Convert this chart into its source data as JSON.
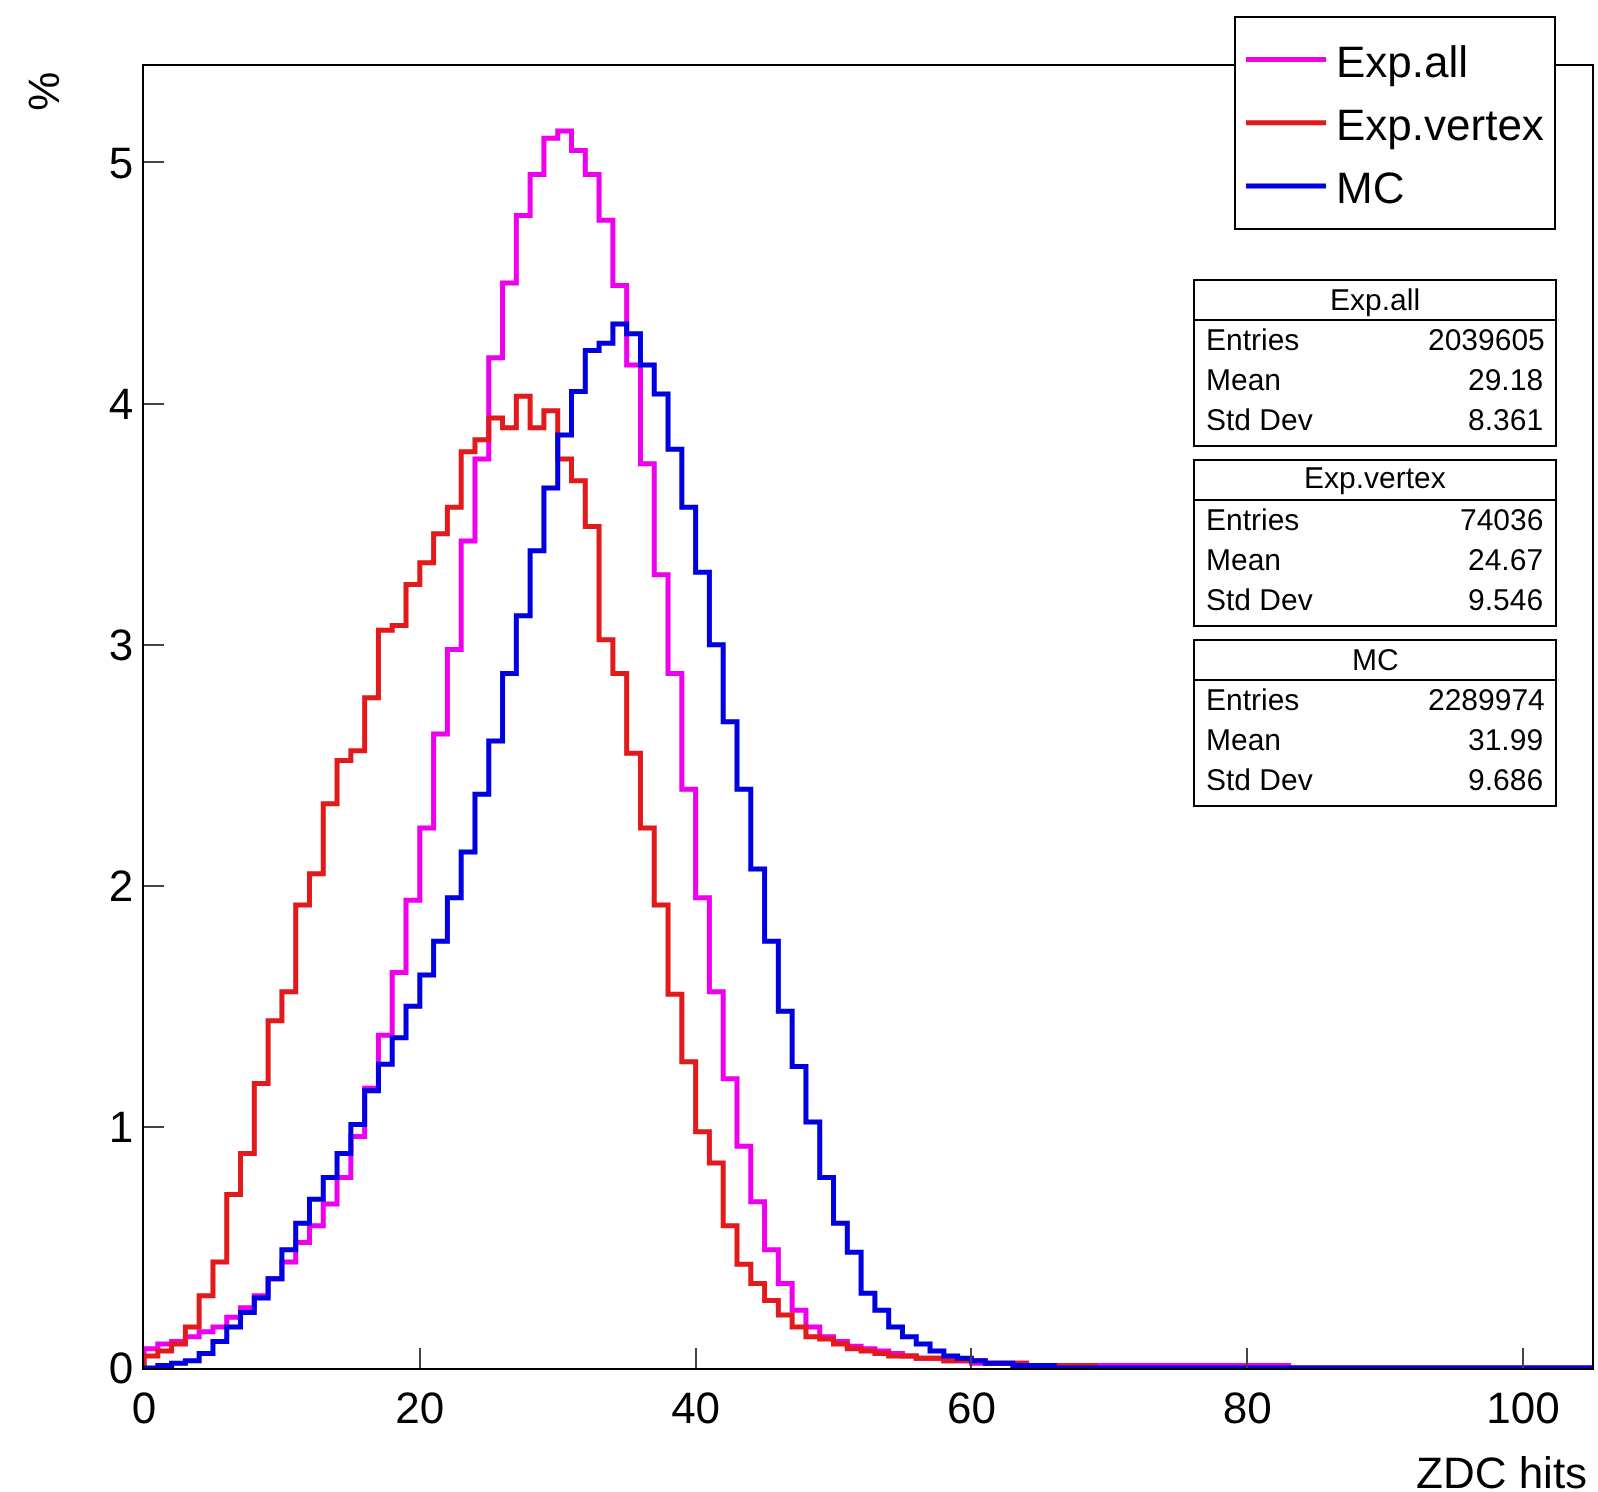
{
  "chart_data": {
    "type": "histogram",
    "xlabel": "ZDC hits",
    "ylabel": "%",
    "bins": [
      0,
      1,
      2,
      3,
      4,
      5,
      6,
      7,
      8,
      9,
      10,
      11,
      12,
      13,
      14,
      15,
      16,
      17,
      18,
      19,
      20,
      21,
      22,
      23,
      24,
      25,
      26,
      27,
      28,
      29,
      30,
      31,
      32,
      33,
      34,
      35,
      36,
      37,
      38,
      39,
      40,
      41,
      42,
      43,
      44,
      45,
      46,
      47,
      48,
      49,
      50,
      51,
      52,
      53,
      54,
      55,
      56,
      57,
      58,
      59,
      60,
      61,
      62,
      63,
      64,
      65,
      66,
      67,
      68,
      69,
      70,
      71,
      72,
      73,
      74,
      75,
      76,
      77,
      78,
      79,
      80,
      81,
      82,
      83,
      84,
      85,
      86,
      87,
      88,
      89,
      90,
      91,
      92,
      93,
      94,
      95,
      96,
      97,
      98,
      99,
      100,
      101,
      102,
      103,
      104,
      105
    ],
    "series": [
      {
        "name": "Exp.all",
        "color": "#ee00ee",
        "values": [
          0.08,
          0.1,
          0.11,
          0.13,
          0.15,
          0.17,
          0.21,
          0.25,
          0.3,
          0.37,
          0.44,
          0.52,
          0.59,
          0.68,
          0.79,
          0.96,
          1.16,
          1.38,
          1.64,
          1.94,
          2.24,
          2.63,
          2.98,
          3.43,
          3.77,
          4.19,
          4.5,
          4.78,
          4.95,
          5.1,
          5.13,
          5.05,
          4.95,
          4.76,
          4.49,
          4.16,
          3.75,
          3.29,
          2.88,
          2.4,
          1.95,
          1.56,
          1.2,
          0.92,
          0.69,
          0.49,
          0.35,
          0.24,
          0.17,
          0.13,
          0.11,
          0.09,
          0.08,
          0.07,
          0.06,
          0.05,
          0.04,
          0.04,
          0.03,
          0.03,
          0.02,
          0.02,
          0.02,
          0.02,
          0.01,
          0.01,
          0.01,
          0.01,
          0.01,
          0.01,
          0.01,
          0.01,
          0.01,
          0.01,
          0.01,
          0.01,
          0.01,
          0.01,
          0.01,
          0.01,
          0.01,
          0.01,
          0.01,
          0,
          0,
          0,
          0,
          0,
          0,
          0,
          0,
          0,
          0,
          0,
          0,
          0,
          0,
          0,
          0,
          0,
          0,
          0,
          0,
          0,
          0
        ]
      },
      {
        "name": "Exp.vertex",
        "color": "#e31a1c",
        "values": [
          0.05,
          0.07,
          0.1,
          0.17,
          0.3,
          0.44,
          0.72,
          0.89,
          1.18,
          1.44,
          1.56,
          1.92,
          2.05,
          2.34,
          2.52,
          2.56,
          2.78,
          3.06,
          3.08,
          3.25,
          3.34,
          3.46,
          3.57,
          3.8,
          3.85,
          3.94,
          3.9,
          4.03,
          3.9,
          3.97,
          3.77,
          3.68,
          3.49,
          3.02,
          2.88,
          2.55,
          2.24,
          1.92,
          1.55,
          1.27,
          0.98,
          0.85,
          0.59,
          0.43,
          0.35,
          0.28,
          0.22,
          0.17,
          0.13,
          0.12,
          0.1,
          0.08,
          0.07,
          0.06,
          0.05,
          0.05,
          0.04,
          0.04,
          0.03,
          0.03,
          0.03,
          0.02,
          0.02,
          0.02,
          0.01,
          0.01,
          0.01,
          0.01,
          0.01,
          0,
          0,
          0,
          0,
          0,
          0,
          0,
          0,
          0,
          0,
          0,
          0,
          0,
          0,
          0,
          0,
          0,
          0,
          0,
          0,
          0,
          0,
          0,
          0,
          0,
          0,
          0,
          0,
          0,
          0,
          0,
          0,
          0,
          0,
          0,
          0
        ]
      },
      {
        "name": "MC",
        "color": "#0000e0",
        "values": [
          0.0,
          0.01,
          0.02,
          0.03,
          0.06,
          0.11,
          0.17,
          0.23,
          0.29,
          0.37,
          0.49,
          0.6,
          0.7,
          0.79,
          0.89,
          1.01,
          1.15,
          1.26,
          1.37,
          1.5,
          1.63,
          1.77,
          1.95,
          2.14,
          2.38,
          2.6,
          2.88,
          3.12,
          3.39,
          3.65,
          3.87,
          4.05,
          4.22,
          4.25,
          4.33,
          4.29,
          4.16,
          4.04,
          3.81,
          3.57,
          3.3,
          3.0,
          2.68,
          2.4,
          2.07,
          1.77,
          1.48,
          1.25,
          1.02,
          0.79,
          0.6,
          0.48,
          0.31,
          0.24,
          0.17,
          0.13,
          0.1,
          0.07,
          0.05,
          0.04,
          0.03,
          0.02,
          0.02,
          0.01,
          0.01,
          0.01,
          0,
          0,
          0,
          0,
          0,
          0,
          0,
          0,
          0,
          0,
          0,
          0,
          0,
          0,
          0,
          0,
          0,
          0,
          0,
          0,
          0,
          0,
          0,
          0,
          0,
          0,
          0,
          0,
          0,
          0,
          0,
          0,
          0,
          0,
          0,
          0,
          0,
          0,
          0
        ]
      }
    ],
    "xlim": [
      0,
      105
    ],
    "ylim": [
      0,
      5.4
    ],
    "xticks": [
      0,
      20,
      40,
      60,
      80,
      100
    ],
    "yticks": [
      0,
      1,
      2,
      3,
      4,
      5
    ],
    "legend": "top right",
    "annotations": [
      "Exp.all",
      "Entries 2039605",
      "Mean 29.18",
      "Std Dev 8.361",
      "Exp.vertex",
      "Entries 74036",
      "Mean 24.67",
      "Std Dev 9.546",
      "MC",
      "Entries 2289974",
      "Mean 31.99",
      "Std Dev 9.686"
    ]
  }
}
